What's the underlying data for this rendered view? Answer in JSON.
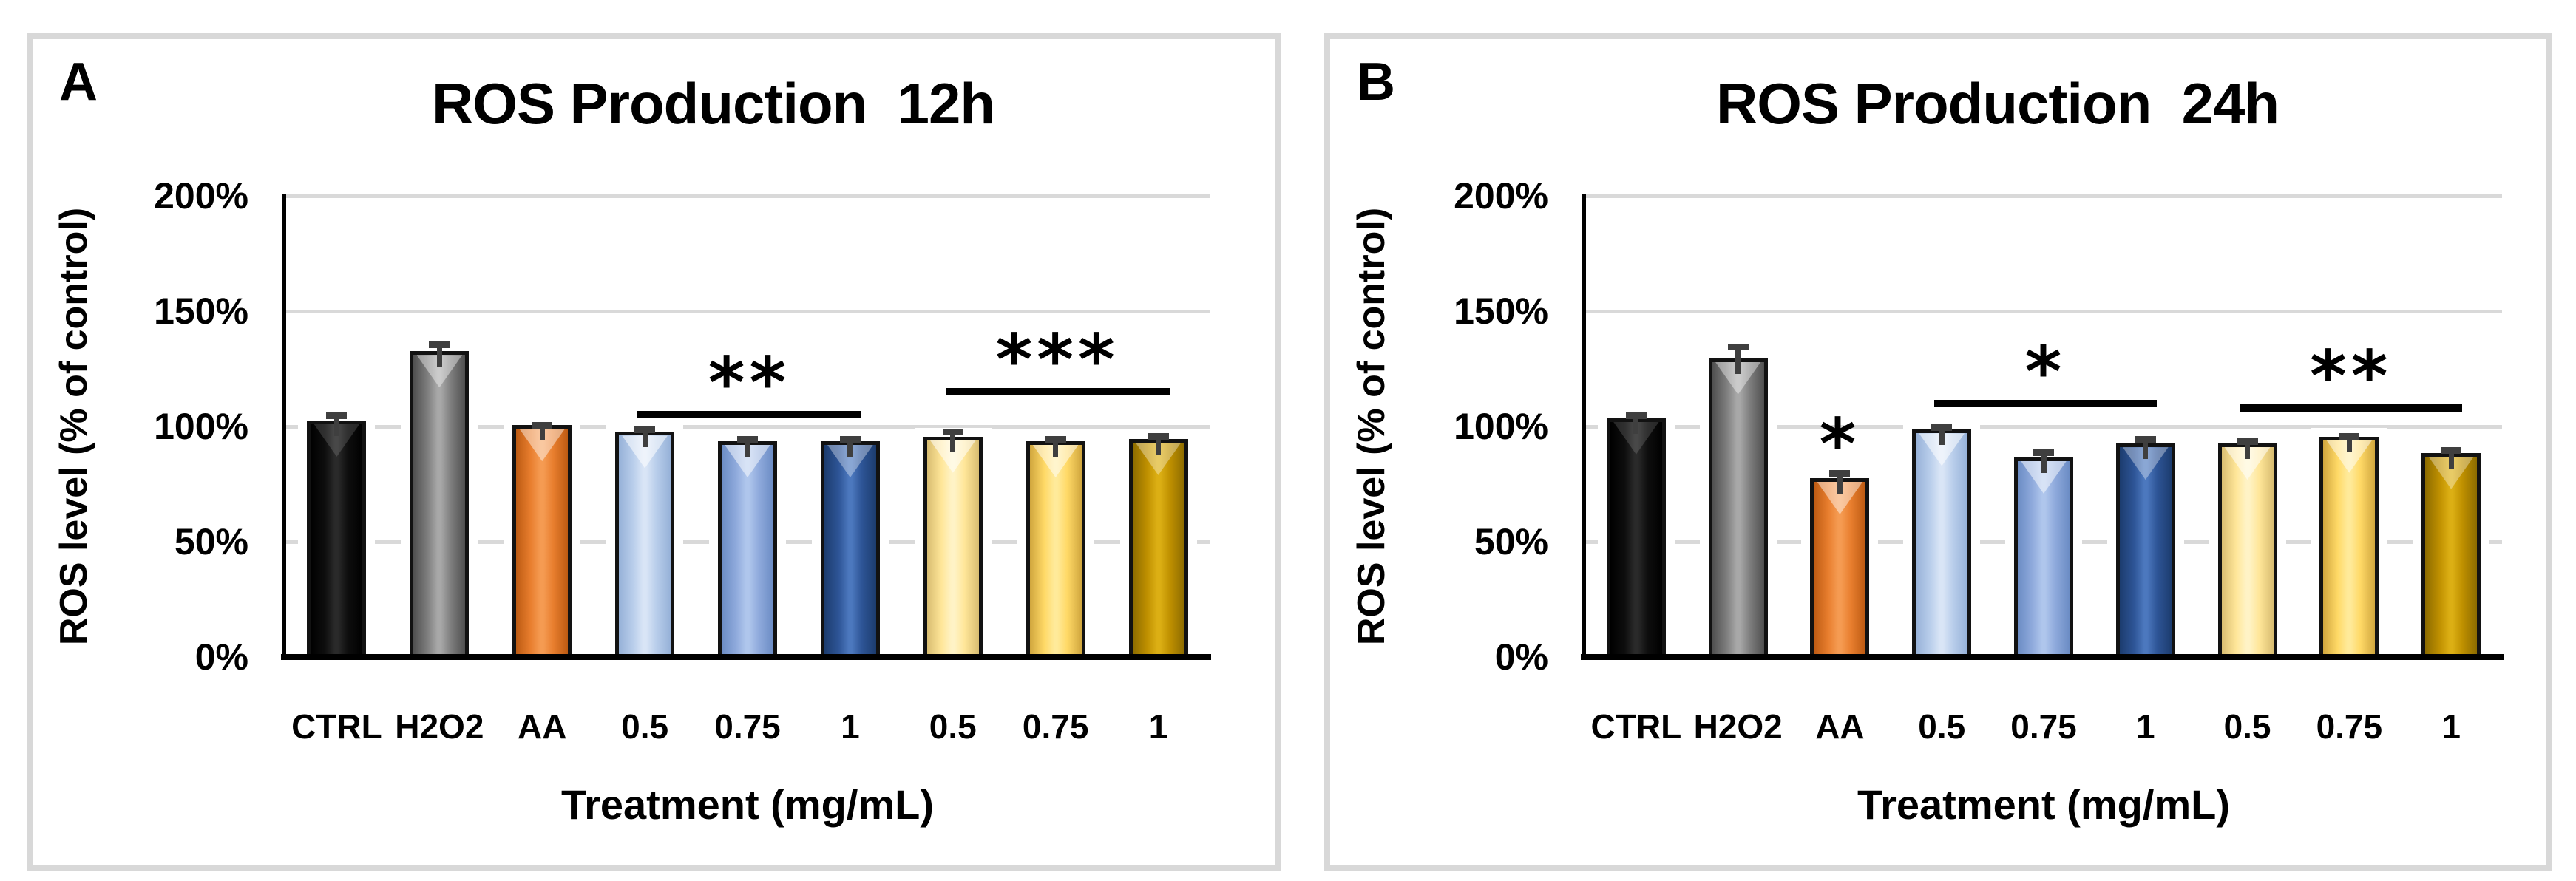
{
  "page": {
    "background": "#FFFFFF"
  },
  "colors": {
    "gridline": "#D9D9D9",
    "axis": "#000000",
    "panel_border": "#D8D8D8",
    "error_bar": "#3F3F3F",
    "significance": "#000000",
    "bar_outline": "#121212",
    "bar_palette": {
      "black": {
        "edge": "#000000",
        "mid": "#0E0E0E",
        "hi": "#2A2A2A",
        "chev": "rgba(255,255,255,0.14)"
      },
      "gray": {
        "edge": "#4F4F4F",
        "mid": "#7F7F7F",
        "hi": "#A8A8A8",
        "chev": "rgba(255,255,255,0.40)"
      },
      "orange": {
        "edge": "#BC5A12",
        "mid": "#E87E2E",
        "hi": "#F59B52",
        "chev": "rgba(255,255,255,0.45)"
      },
      "blue_light": {
        "edge": "#96B1D8",
        "mid": "#B9CEEB",
        "hi": "#D9E5F6",
        "chev": "rgba(255,255,255,0.55)"
      },
      "blue_med": {
        "edge": "#6B8CC4",
        "mid": "#8FAADC",
        "hi": "#AFC6EC",
        "chev": "rgba(255,255,255,0.50)"
      },
      "blue_dark": {
        "edge": "#1C3C6E",
        "mid": "#2E5597",
        "hi": "#4C78BE",
        "chev": "rgba(255,255,255,0.35)"
      },
      "yellow_pale": {
        "edge": "#D8BD71",
        "mid": "#FFE699",
        "hi": "#FFF3C6",
        "chev": "rgba(255,255,255,0.55)"
      },
      "yellow": {
        "edge": "#D0A63E",
        "mid": "#FFD966",
        "hi": "#FFEA9A",
        "chev": "rgba(255,255,255,0.50)"
      },
      "gold": {
        "edge": "#8C6B00",
        "mid": "#BF9000",
        "hi": "#DCAF14",
        "chev": "rgba(255,255,255,0.35)"
      }
    }
  },
  "panels": [
    {
      "letter": "A",
      "title": "ROS Production  12h",
      "y_axis_title": "ROS level (% of control)",
      "x_axis_title": "Treatment (mg/mL)"
    },
    {
      "letter": "B",
      "title": "ROS Production  24h",
      "y_axis_title": "ROS level (% of control)",
      "x_axis_title": "Treatment (mg/mL)"
    }
  ],
  "chart_data": [
    {
      "type": "bar",
      "panel": "A",
      "title": "ROS Production  12h",
      "xlabel": "Treatment (mg/mL)",
      "ylabel": "ROS level (% of control)",
      "ylim": [
        0,
        200
      ],
      "yticks": [
        0,
        50,
        100,
        150,
        200
      ],
      "ytick_labels": [
        "0%",
        "50%",
        "100%",
        "150%",
        "200%"
      ],
      "grid": true,
      "legend": false,
      "categories": [
        "CTRL",
        "H2O2",
        "AA",
        "0.5",
        "0.75",
        "1",
        "0.5",
        "0.75",
        "1"
      ],
      "values": [
        101,
        131,
        99,
        96,
        92,
        92,
        94,
        92,
        93
      ],
      "errors_plus": [
        4,
        5,
        2,
        3,
        3,
        3,
        4,
        3,
        3
      ],
      "bar_color_keys": [
        "black",
        "gray",
        "orange",
        "blue_light",
        "blue_med",
        "blue_dark",
        "yellow_pale",
        "yellow",
        "gold"
      ],
      "significance_brackets": [
        {
          "from_index": 3,
          "to_index": 5,
          "line_percent": 105,
          "label": "**"
        },
        {
          "from_index": 6,
          "to_index": 8,
          "line_percent": 115,
          "label": "***"
        }
      ],
      "point_annotations": []
    },
    {
      "type": "bar",
      "panel": "B",
      "title": "ROS Production  24h",
      "xlabel": "Treatment (mg/mL)",
      "ylabel": "ROS level (% of control)",
      "ylim": [
        0,
        200
      ],
      "yticks": [
        0,
        50,
        100,
        150,
        200
      ],
      "ytick_labels": [
        "0%",
        "50%",
        "100%",
        "150%",
        "200%"
      ],
      "grid": true,
      "legend": false,
      "categories": [
        "CTRL",
        "H2O2",
        "AA",
        "0.5",
        "0.75",
        "1",
        "0.5",
        "0.75",
        "1"
      ],
      "values": [
        102,
        128,
        76,
        97,
        85,
        91,
        91,
        94,
        87
      ],
      "errors_plus": [
        3,
        7,
        4,
        3,
        4,
        4,
        3,
        2,
        3
      ],
      "bar_color_keys": [
        "black",
        "gray",
        "orange",
        "blue_light",
        "blue_med",
        "blue_dark",
        "yellow_pale",
        "yellow",
        "gold"
      ],
      "significance_brackets": [
        {
          "from_index": 3,
          "to_index": 5,
          "line_percent": 110,
          "label": "*"
        },
        {
          "from_index": 6,
          "to_index": 8,
          "line_percent": 108,
          "label": "**"
        }
      ],
      "point_annotations": [
        {
          "index": 2,
          "percent": 96,
          "label": "*"
        }
      ]
    }
  ]
}
